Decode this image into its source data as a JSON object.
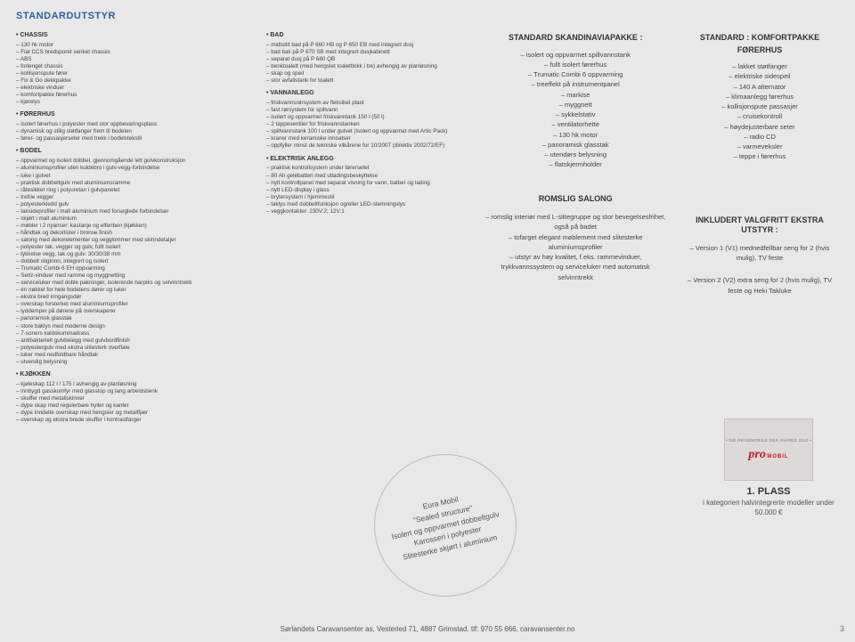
{
  "title": "STANDARDUTSTYR",
  "col1": {
    "sections": [
      {
        "head": "• CHASSIS",
        "items": [
          "130 hk motor",
          "Fiat CCS bredsporet senket chassis",
          "ABS",
          "forlenget chassis",
          "kollisjonspute fører",
          "Fix & Go dekkpakke",
          "elektriske vinduer",
          "komfortpakke førerhus",
          "kjørelys"
        ]
      },
      {
        "head": "• FØRERHUS",
        "items": [
          "isolert førerhus i polyester med stor oppbevaringsplass",
          "dynamisk og stilig støtfanger frem til bodelen",
          "fører- og passasjerseter med trekk i bodelstekstil"
        ]
      },
      {
        "head": "• BODEL",
        "items": [
          "oppvarmet og isolert dobbel, gjennomgående lett gulvkonstruksjon",
          "aluminiumsprofiler uten kuldebro i gulv-vegg-forbindelse",
          "luke i gulvet",
          "praktisk dobbeltgulv med aluminiumsramme",
          "råtesikker ring i polyuretan i gulvpanelet",
          "trefrie vegger",
          "polyesterkledd gulv",
          "taksideprofiler i malt aluminium med forseglede forbindelser",
          "skjørt i malt aluminium",
          "møbler i 2 nyanser: kastanje og elfenben (kjøkken)",
          "håndtak og dekorlister i bronse finish",
          "salong med dekorelementer og vegglommer med skinndetaljer",
          "polyester tak, vegger og gulv, fullt isolert",
          "tykkelse vegg, tak og gulv: 30/30/38 mm",
          "dobbelt stigtrinn, integrert og isolert",
          "Trumatic Combi 6 EH oppvarming",
          "Seitz-vinduer med ramme og myggnetting",
          "serviceluker med doble pakninger, isolerende harpiks og selvinntrekk",
          "én nøkkel for hele bodelens dører og luker",
          "ekstra bred inngangsdør",
          "overskap forsterket med aluminiumsprofiler",
          "lyddemper på dørene på overskapene",
          "panoramisk glasstak",
          "store baklys med moderne design",
          "7-soners kaldskummadrass",
          "antibakterielt gulvbelegg med gulvbordfinish",
          "polyestergulv med ekstra slitesterk overflate",
          "luker med nedfoldbare håndtak",
          "utvendig belysning"
        ]
      },
      {
        "head": "• KJØKKEN",
        "items": [
          "kjøleskap 112 l / 175 l avhengig av planløsning",
          "innbygd gasskomfyr med glasstop og lang arbeidsbenk",
          "skuffer med metallskinner",
          "dype skap med regulerbare hyller og kanter",
          "dype inndelte overskap med hengsler og metallfjær",
          "overskap og ekstra brede skuffer i kontrastfarger"
        ]
      }
    ]
  },
  "col2": {
    "sections": [
      {
        "head": "• BAD",
        "items": [
          "midtstilt bad på P 660 HB og P 650 EB med integrert dusj",
          "bad bak på P 670 SB med integrert dusjkabinett",
          "separat dusj på P 680 QB",
          "benktoalett (med hengslet toalettlokk i tre) avhengig av planløsning",
          "skap og speil",
          "stor avfallstank for toalett"
        ]
      },
      {
        "head": "• VANNANLEGG",
        "items": [
          "friskvannsrørsystem av fleksibel plast",
          "fast rørsystem for spillvann",
          "isolert og oppvarmet friskvanntank 150 l (50 l)",
          "2 tappeventiler for friskvannstanken",
          "spillvannstank 100 l under gulvet (isolert og oppvarmet med Artic Pack)",
          "kraner med keramiske innsatser",
          "oppfyller minst de tekniske vilkårene for 10/2007 (direktiv 2002/72/EF)"
        ]
      },
      {
        "head": "• ELEKTRISK ANLEGG",
        "items": [
          "praktisk kontrollsystem under førersetet",
          "80 Ah gelébatteri med utladingsbeskyttelse",
          "nytt kontrollpanel med separat visning for vann, batteri og lading",
          "nytt LED-display i glass",
          "brytersystem i hjemmestil",
          "taklys med dobbeltfunksjon og/eller LED-stemningslys",
          "veggkontakter: 230V:2; 12V:1"
        ]
      }
    ]
  },
  "col3": {
    "header": "STANDARD SKANDINAVIAPAKKE :",
    "items": [
      "isolert og oppvarmet spillvannstank",
      "fullt isolert førerhus",
      "Trumatic Combi 6 oppvarming",
      "treeffekt på instrumentpanel",
      "markise",
      "myggnett",
      "sykkelstativ",
      "ventilatorhette",
      "130 hk motor",
      "panoramisk glasstak",
      "utendørs belysning",
      "flatskjermholder"
    ],
    "salong": {
      "head": "ROMSLIG SALONG",
      "items": [
        "romslig interiør med L-sittegruppe og stor bevegelsesfrihet, også på badet",
        "tofarget elegant møblement med slitesterke aluminiumsprofiler",
        "utstyr av høy kvalitet, f.eks. rammevinduer, trykkvannssystem og serviceluker med automatisk selvinntrekk"
      ]
    }
  },
  "col4": {
    "header": "STANDARD : KOMFORTPAKKE FØRERHUS",
    "items": [
      "lakket støtfanger",
      "elektriske sidespeil",
      "140 A alternator",
      "klimaanlegg førerhus",
      "kollisjonspute passasjer",
      "cruisekontroll",
      "høydejusterbare seter",
      "radio CD",
      "varmeveksler",
      "teppe i førerhus"
    ],
    "inkludert": {
      "head": "INKLUDERT VALGFRITT EKSTRA UTSTYR :",
      "items": [
        "Version 1 (V1) mednedfellbar seng for 2 (hvis mulig), TV feste",
        "Version 2 (V2) extra seng for 2 (hvis mulig), TV feste og Heki Takluke"
      ]
    }
  },
  "circle": {
    "l1": "Eura Mobil",
    "l2": "\"Sealed structure\"",
    "l3": "Isolert og oppvarmet dobbeltgulv",
    "l4": "Karosseri i polyester",
    "l5": "Slitesterke skjørt i aluminium"
  },
  "award": {
    "banner": "• DIE REISEMOBILE DES JAHRES 2012 •",
    "brand": "pro mobil",
    "title": "1. PLASS",
    "text": "i kategorien halvintegrerte modeller under 50.000 €"
  },
  "footer": "Sørlandets Caravansenter as, Vesterled 71, 4887 Grimstad. tlf: 970 55 666, caravansenter.no",
  "pagenum": "3"
}
